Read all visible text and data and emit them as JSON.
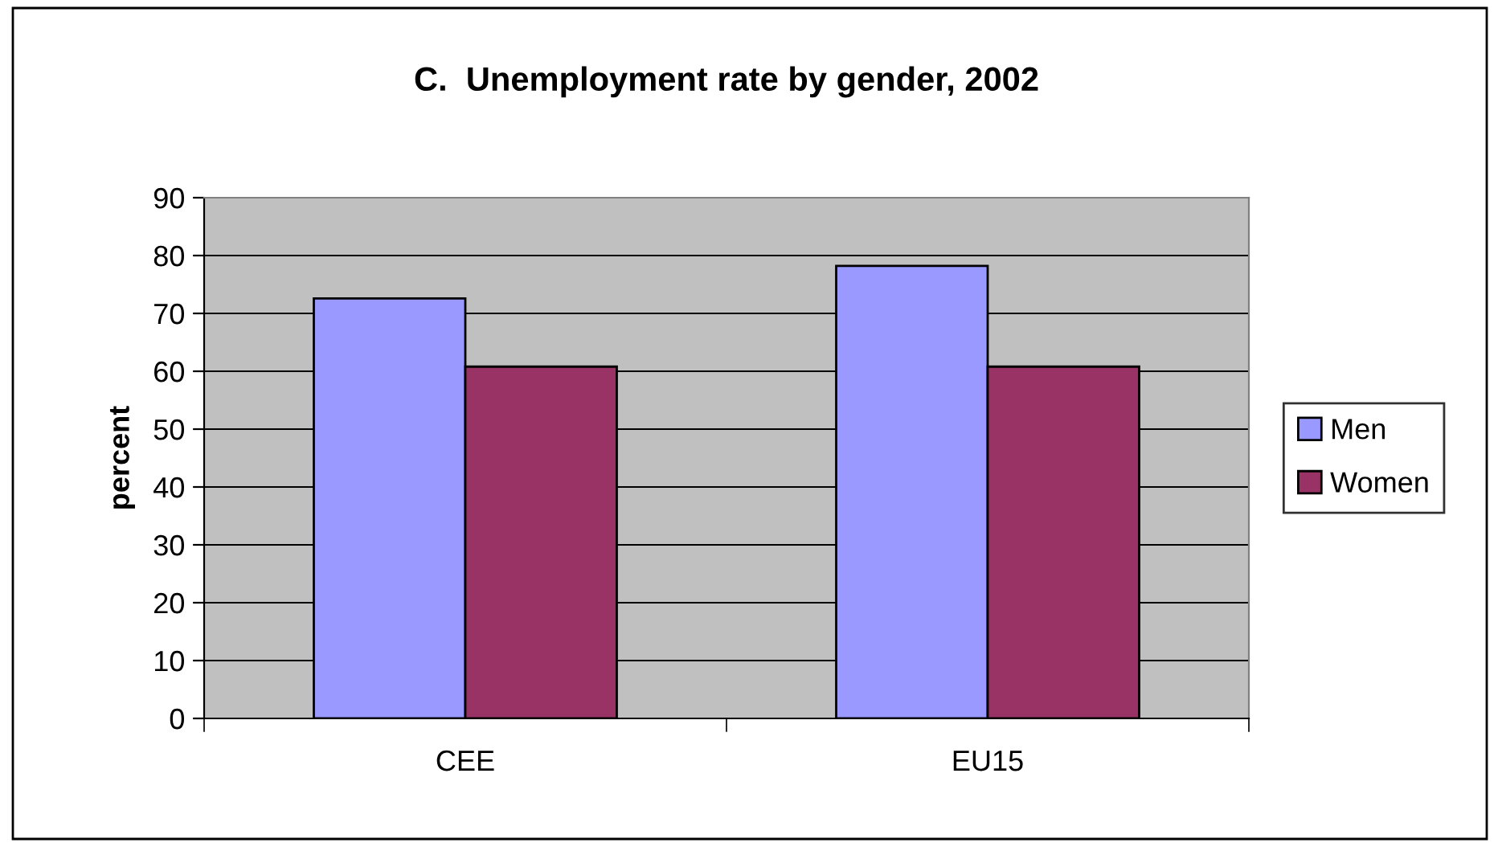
{
  "chart_data": {
    "type": "bar",
    "title": "C.  Unemployment rate by gender, 2002",
    "ylabel": "percent",
    "categories": [
      "CEE",
      "EU15"
    ],
    "series": [
      {
        "name": "Men",
        "color": "#9999ff",
        "values": [
          72.6,
          78.2
        ]
      },
      {
        "name": "Women",
        "color": "#993366",
        "values": [
          60.8,
          60.8
        ]
      }
    ],
    "ylim": [
      0,
      90
    ],
    "yticks": [
      0,
      10,
      20,
      30,
      40,
      50,
      60,
      70,
      80,
      90
    ],
    "grid": "y",
    "legend": "right"
  }
}
